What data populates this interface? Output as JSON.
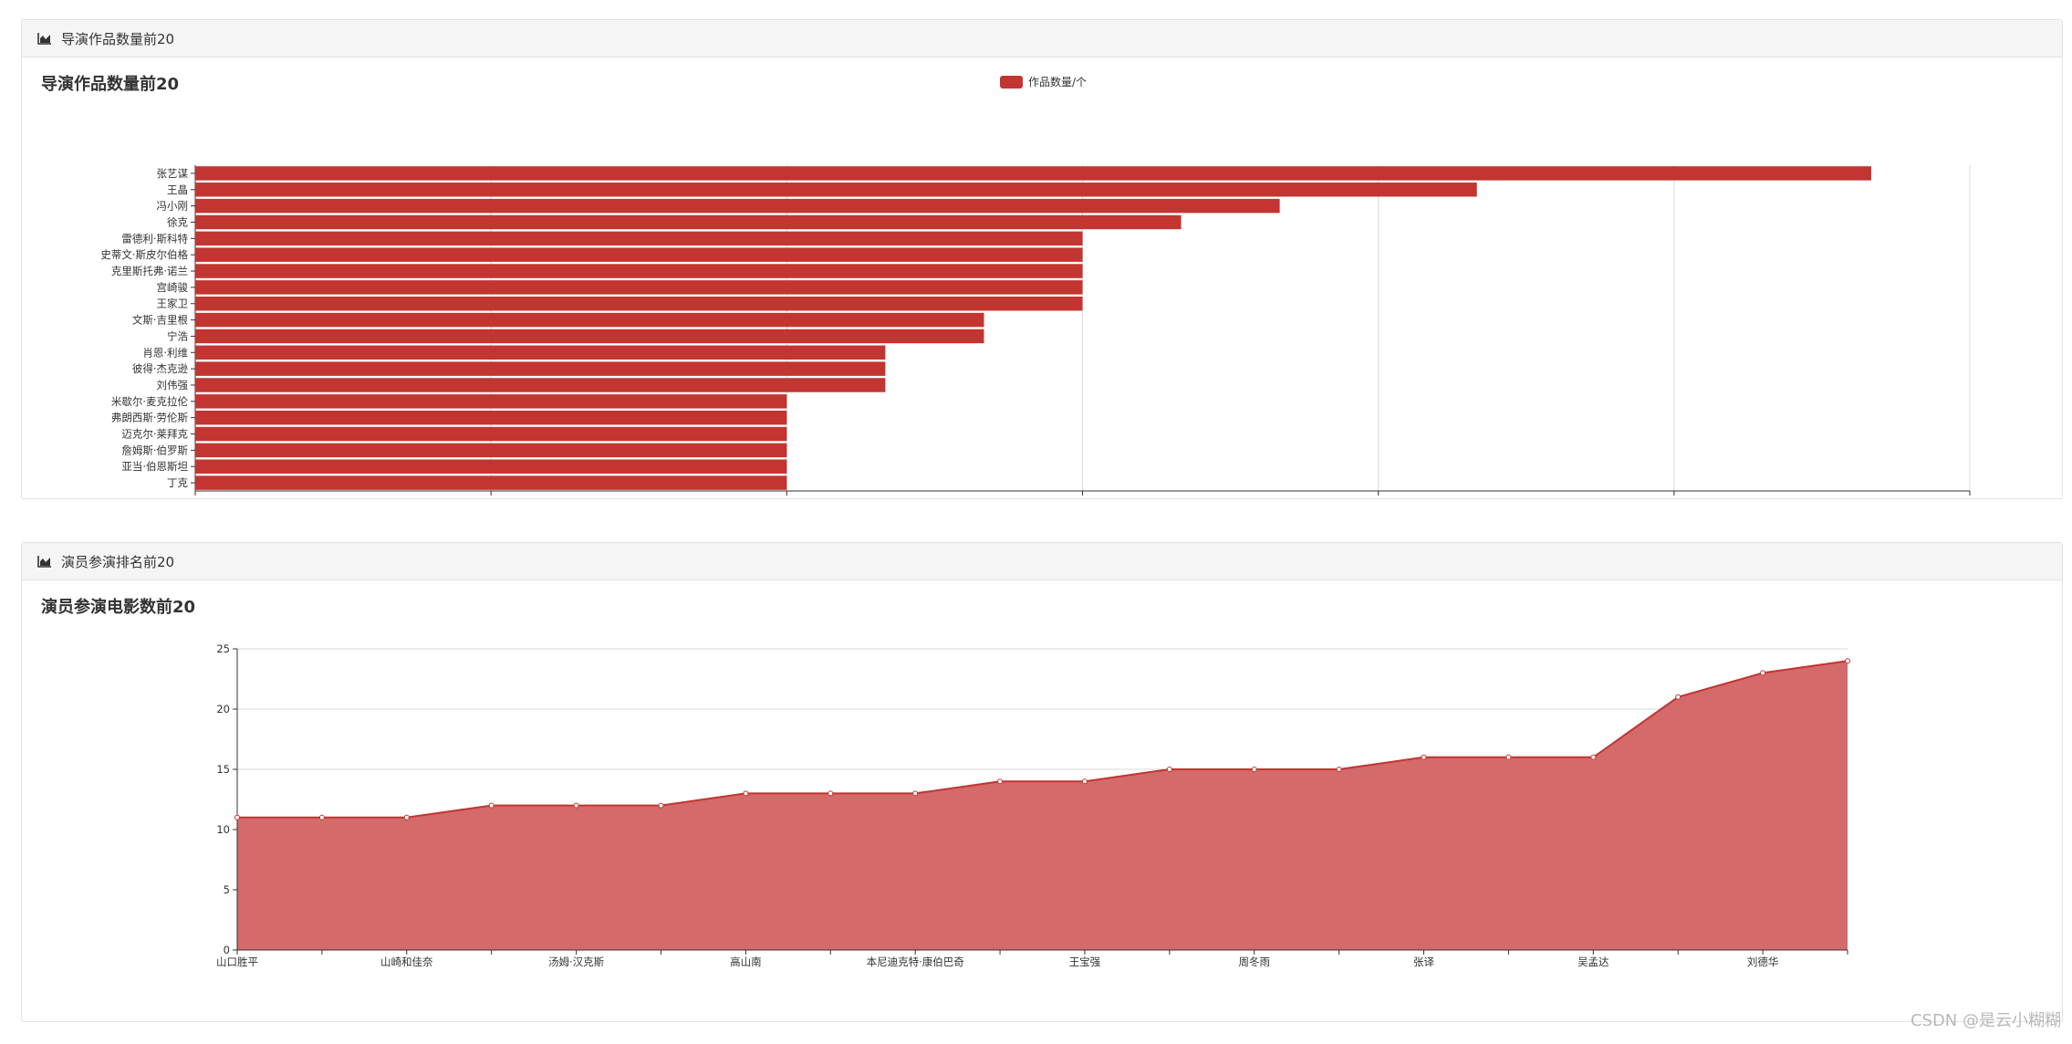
{
  "panels": [
    {
      "heading": "导演作品数量前20",
      "icon": "area-chart-icon"
    },
    {
      "heading": "演员参演排名前20",
      "icon": "area-chart-icon"
    }
  ],
  "chart_data": [
    {
      "type": "bar",
      "orientation": "horizontal",
      "title": "导演作品数量前20",
      "legend": {
        "position": "top-center",
        "entries": [
          "作品数量/个"
        ]
      },
      "categories": [
        "张艺谋",
        "王晶",
        "冯小刚",
        "徐克",
        "雷德利·斯科特",
        "史蒂文·斯皮尔伯格",
        "克里斯托弗·诺兰",
        "宫崎骏",
        "王家卫",
        "文斯·吉里根",
        "宁浩",
        "肖恩·利维",
        "彼得·杰克逊",
        "刘伟强",
        "米歇尔·麦克拉伦",
        "弗朗西斯·劳伦斯",
        "迈克尔·莱拜克",
        "詹姆斯·伯罗斯",
        "亚当·伯恩斯坦",
        "丁克"
      ],
      "series": [
        {
          "name": "作品数量/个",
          "values": [
            17,
            13,
            11,
            10,
            9,
            9,
            9,
            9,
            9,
            8,
            8,
            7,
            7,
            7,
            6,
            6,
            6,
            6,
            6,
            6
          ]
        }
      ],
      "xlim": [
        0,
        18
      ],
      "xticks": [
        0,
        3,
        6,
        9,
        12,
        15,
        18
      ],
      "grid": true,
      "color": "#c23531"
    },
    {
      "type": "area",
      "title": "演员参演电影数前20",
      "x": [
        "山口胜平",
        "",
        "山崎和佳奈",
        "",
        "汤姆·汉克斯",
        "",
        "高山南",
        "",
        "本尼迪克特·康伯巴奇",
        "",
        "王宝强",
        "",
        "周冬雨",
        "",
        "张译",
        "",
        "吴孟达",
        "",
        "刘德华",
        ""
      ],
      "series": [
        {
          "values": [
            11,
            11,
            11,
            12,
            12,
            12,
            13,
            13,
            13,
            14,
            14,
            15,
            15,
            15,
            16,
            16,
            16,
            21,
            23,
            24
          ]
        }
      ],
      "ylim": [
        0,
        25
      ],
      "yticks": [
        0,
        5,
        10,
        15,
        20,
        25
      ],
      "grid": true,
      "color": "#c23531",
      "fill": "#d46a6a"
    }
  ],
  "watermark": "CSDN @是云小糊糊"
}
